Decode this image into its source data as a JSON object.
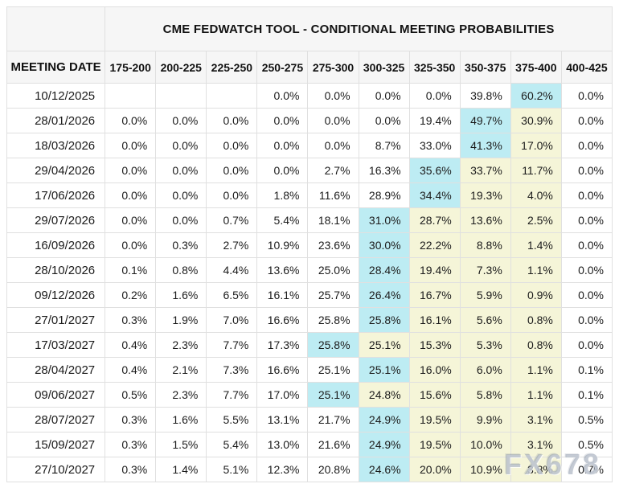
{
  "chart_data": {
    "type": "table",
    "title": "CME FEDWATCH TOOL - CONDITIONAL MEETING PROBABILITIES",
    "row_header": "MEETING DATE",
    "rate_bins": [
      "175-200",
      "200-225",
      "225-250",
      "250-275",
      "275-300",
      "300-325",
      "325-350",
      "350-375",
      "375-400",
      "400-425"
    ],
    "rows": [
      {
        "date": "10/12/2025",
        "values": [
          "",
          "",
          "",
          "0.0%",
          "0.0%",
          "0.0%",
          "0.0%",
          "39.8%",
          "60.2%",
          "0.0%"
        ],
        "highlights": [
          "",
          "",
          "",
          "",
          "",
          "",
          "",
          "",
          "c",
          ""
        ]
      },
      {
        "date": "28/01/2026",
        "values": [
          "0.0%",
          "0.0%",
          "0.0%",
          "0.0%",
          "0.0%",
          "0.0%",
          "19.4%",
          "49.7%",
          "30.9%",
          "0.0%"
        ],
        "highlights": [
          "",
          "",
          "",
          "",
          "",
          "",
          "",
          "c",
          "y",
          ""
        ]
      },
      {
        "date": "18/03/2026",
        "values": [
          "0.0%",
          "0.0%",
          "0.0%",
          "0.0%",
          "0.0%",
          "8.7%",
          "33.0%",
          "41.3%",
          "17.0%",
          "0.0%"
        ],
        "highlights": [
          "",
          "",
          "",
          "",
          "",
          "",
          "",
          "c",
          "y",
          ""
        ]
      },
      {
        "date": "29/04/2026",
        "values": [
          "0.0%",
          "0.0%",
          "0.0%",
          "0.0%",
          "2.7%",
          "16.3%",
          "35.6%",
          "33.7%",
          "11.7%",
          "0.0%"
        ],
        "highlights": [
          "",
          "",
          "",
          "",
          "",
          "",
          "c",
          "y",
          "y",
          ""
        ]
      },
      {
        "date": "17/06/2026",
        "values": [
          "0.0%",
          "0.0%",
          "0.0%",
          "1.8%",
          "11.6%",
          "28.9%",
          "34.4%",
          "19.3%",
          "4.0%",
          "0.0%"
        ],
        "highlights": [
          "",
          "",
          "",
          "",
          "",
          "",
          "c",
          "y",
          "y",
          ""
        ]
      },
      {
        "date": "29/07/2026",
        "values": [
          "0.0%",
          "0.0%",
          "0.7%",
          "5.4%",
          "18.1%",
          "31.0%",
          "28.7%",
          "13.6%",
          "2.5%",
          "0.0%"
        ],
        "highlights": [
          "",
          "",
          "",
          "",
          "",
          "c",
          "y",
          "y",
          "y",
          ""
        ]
      },
      {
        "date": "16/09/2026",
        "values": [
          "0.0%",
          "0.3%",
          "2.7%",
          "10.9%",
          "23.6%",
          "30.0%",
          "22.2%",
          "8.8%",
          "1.4%",
          "0.0%"
        ],
        "highlights": [
          "",
          "",
          "",
          "",
          "",
          "c",
          "y",
          "y",
          "y",
          ""
        ]
      },
      {
        "date": "28/10/2026",
        "values": [
          "0.1%",
          "0.8%",
          "4.4%",
          "13.6%",
          "25.0%",
          "28.4%",
          "19.4%",
          "7.3%",
          "1.1%",
          "0.0%"
        ],
        "highlights": [
          "",
          "",
          "",
          "",
          "",
          "c",
          "y",
          "y",
          "y",
          ""
        ]
      },
      {
        "date": "09/12/2026",
        "values": [
          "0.2%",
          "1.6%",
          "6.5%",
          "16.1%",
          "25.7%",
          "26.4%",
          "16.7%",
          "5.9%",
          "0.9%",
          "0.0%"
        ],
        "highlights": [
          "",
          "",
          "",
          "",
          "",
          "c",
          "y",
          "y",
          "y",
          ""
        ]
      },
      {
        "date": "27/01/2027",
        "values": [
          "0.3%",
          "1.9%",
          "7.0%",
          "16.6%",
          "25.8%",
          "25.8%",
          "16.1%",
          "5.6%",
          "0.8%",
          "0.0%"
        ],
        "highlights": [
          "",
          "",
          "",
          "",
          "",
          "c",
          "y",
          "y",
          "y",
          ""
        ]
      },
      {
        "date": "17/03/2027",
        "values": [
          "0.4%",
          "2.3%",
          "7.7%",
          "17.3%",
          "25.8%",
          "25.1%",
          "15.3%",
          "5.3%",
          "0.8%",
          "0.0%"
        ],
        "highlights": [
          "",
          "",
          "",
          "",
          "c",
          "y",
          "y",
          "y",
          "y",
          ""
        ]
      },
      {
        "date": "28/04/2027",
        "values": [
          "0.4%",
          "2.1%",
          "7.3%",
          "16.6%",
          "25.1%",
          "25.1%",
          "16.0%",
          "6.0%",
          "1.1%",
          "0.1%"
        ],
        "highlights": [
          "",
          "",
          "",
          "",
          "",
          "c",
          "y",
          "y",
          "y",
          ""
        ]
      },
      {
        "date": "09/06/2027",
        "values": [
          "0.5%",
          "2.3%",
          "7.7%",
          "17.0%",
          "25.1%",
          "24.8%",
          "15.6%",
          "5.8%",
          "1.1%",
          "0.1%"
        ],
        "highlights": [
          "",
          "",
          "",
          "",
          "c",
          "y",
          "y",
          "y",
          "y",
          ""
        ]
      },
      {
        "date": "28/07/2027",
        "values": [
          "0.3%",
          "1.6%",
          "5.5%",
          "13.1%",
          "21.7%",
          "24.9%",
          "19.5%",
          "9.9%",
          "3.1%",
          "0.5%"
        ],
        "highlights": [
          "",
          "",
          "",
          "",
          "",
          "c",
          "y",
          "y",
          "y",
          ""
        ]
      },
      {
        "date": "15/09/2027",
        "values": [
          "0.3%",
          "1.5%",
          "5.4%",
          "13.0%",
          "21.6%",
          "24.9%",
          "19.5%",
          "10.0%",
          "3.1%",
          "0.5%"
        ],
        "highlights": [
          "",
          "",
          "",
          "",
          "",
          "c",
          "y",
          "y",
          "y",
          ""
        ]
      },
      {
        "date": "27/10/2027",
        "values": [
          "0.3%",
          "1.4%",
          "5.1%",
          "12.3%",
          "20.8%",
          "24.6%",
          "20.0%",
          "10.9%",
          "3.8%",
          "0.7%"
        ],
        "highlights": [
          "",
          "",
          "",
          "",
          "",
          "c",
          "y",
          "y",
          "y",
          ""
        ]
      }
    ]
  },
  "colors": {
    "cyan_highlight": "#bdecf3",
    "yellow_highlight": "#f5f5d8"
  },
  "watermark": {
    "text": "FX678"
  }
}
